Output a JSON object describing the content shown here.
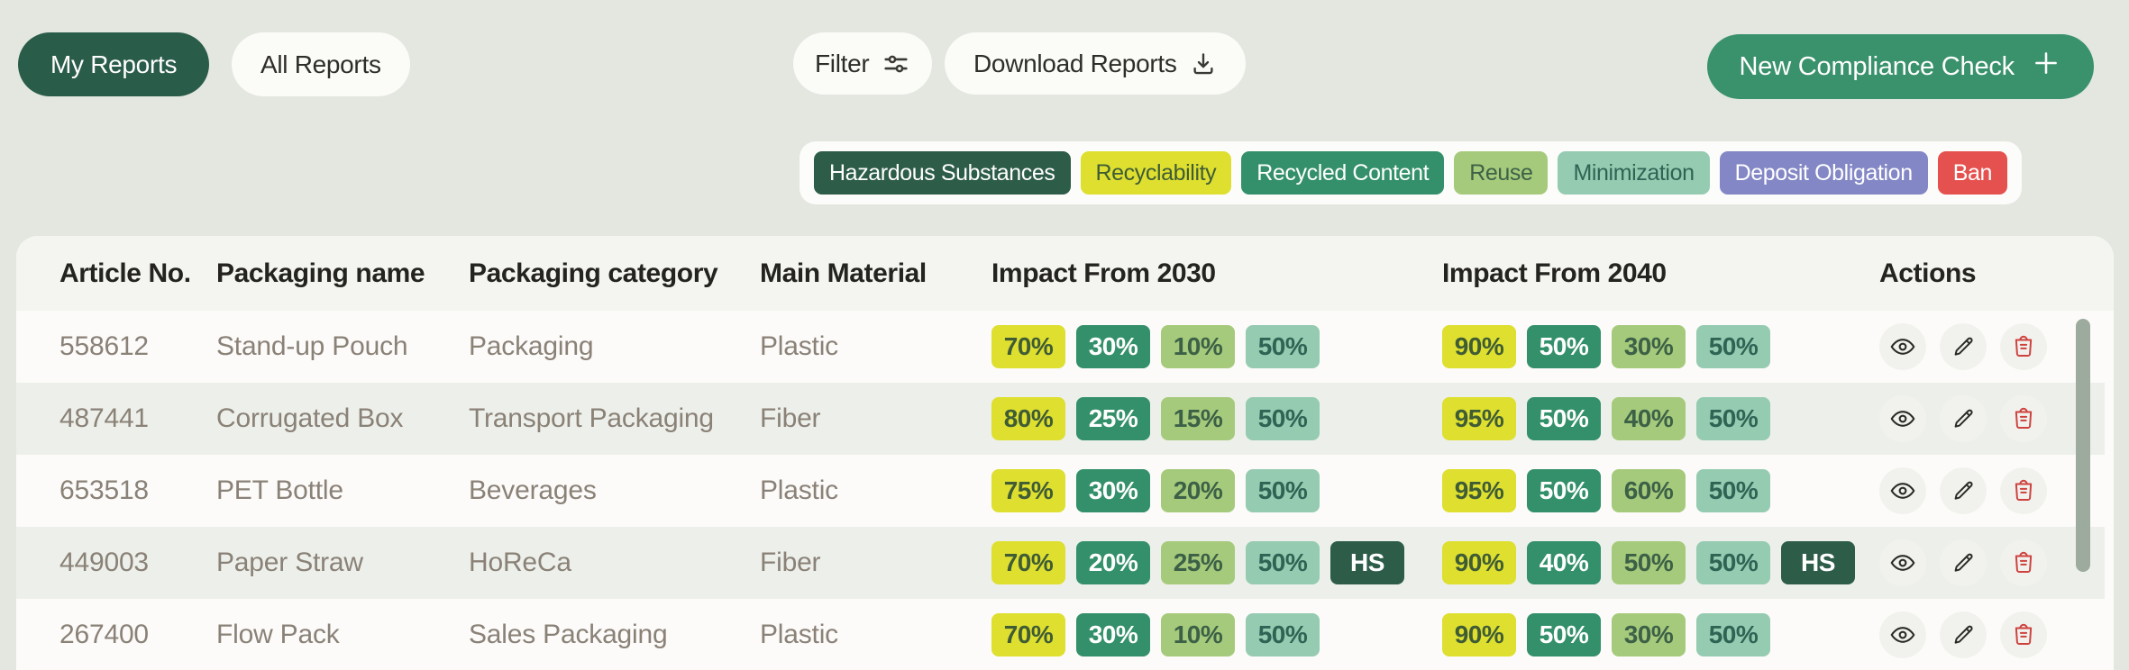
{
  "toolbar": {
    "tabs": [
      {
        "label": "My Reports",
        "active": true
      },
      {
        "label": "All Reports",
        "active": false
      }
    ],
    "filter_label": "Filter",
    "download_label": "Download Reports",
    "new_check_label": "New Compliance Check"
  },
  "legend": {
    "tags": [
      {
        "label": "Hazardous Substances",
        "type": "hazardous"
      },
      {
        "label": "Recyclability",
        "type": "recyclability"
      },
      {
        "label": "Recycled Content",
        "type": "recycled_content"
      },
      {
        "label": "Reuse",
        "type": "reuse"
      },
      {
        "label": "Minimization",
        "type": "minimization"
      },
      {
        "label": "Deposit Obligation",
        "type": "deposit_obligation"
      },
      {
        "label": "Ban",
        "type": "ban"
      }
    ]
  },
  "colors": {
    "page_background": "#e3e7e0",
    "active_tab_green": "#2a5c4a",
    "cta_green": "#3a926c",
    "stripe_row": "#edf0ea",
    "delete_red": "#ce423e",
    "scrollbar": "#9dab9e",
    "badges": {
      "hazardous": {
        "bg": "#2d5c49",
        "fg": "#ffffff"
      },
      "recyclability": {
        "bg": "#dedf2f",
        "fg": "#3f5c35"
      },
      "recycled_content": {
        "bg": "#33906a",
        "fg": "#ffffff"
      },
      "reuse": {
        "bg": "#a6ca7b",
        "fg": "#3c6147"
      },
      "minimization": {
        "bg": "#95cbb1",
        "fg": "#2e6454"
      },
      "deposit_obligation": {
        "bg": "#8387c5",
        "fg": "#ffffff"
      },
      "ban": {
        "bg": "#e5514e",
        "fg": "#ffffff"
      }
    }
  },
  "table": {
    "columns": [
      "Article No.",
      "Packaging name",
      "Packaging category",
      "Main Material",
      "Impact From 2030",
      "Impact From 2040",
      "Actions"
    ],
    "rows": [
      {
        "article_no": "558612",
        "name": "Stand-up Pouch",
        "category": "Packaging",
        "material": "Plastic",
        "impact_2030": [
          {
            "label": "70%",
            "type": "recyclability"
          },
          {
            "label": "30%",
            "type": "recycled_content"
          },
          {
            "label": "10%",
            "type": "reuse"
          },
          {
            "label": "50%",
            "type": "minimization"
          }
        ],
        "impact_2040": [
          {
            "label": "90%",
            "type": "recyclability"
          },
          {
            "label": "50%",
            "type": "recycled_content"
          },
          {
            "label": "30%",
            "type": "reuse"
          },
          {
            "label": "50%",
            "type": "minimization"
          }
        ]
      },
      {
        "article_no": "487441",
        "name": "Corrugated Box",
        "category": "Transport Packaging",
        "material": "Fiber",
        "impact_2030": [
          {
            "label": "80%",
            "type": "recyclability"
          },
          {
            "label": "25%",
            "type": "recycled_content"
          },
          {
            "label": "15%",
            "type": "reuse"
          },
          {
            "label": "50%",
            "type": "minimization"
          }
        ],
        "impact_2040": [
          {
            "label": "95%",
            "type": "recyclability"
          },
          {
            "label": "50%",
            "type": "recycled_content"
          },
          {
            "label": "40%",
            "type": "reuse"
          },
          {
            "label": "50%",
            "type": "minimization"
          }
        ]
      },
      {
        "article_no": "653518",
        "name": "PET Bottle",
        "category": "Beverages",
        "material": "Plastic",
        "impact_2030": [
          {
            "label": "75%",
            "type": "recyclability"
          },
          {
            "label": "30%",
            "type": "recycled_content"
          },
          {
            "label": "20%",
            "type": "reuse"
          },
          {
            "label": "50%",
            "type": "minimization"
          }
        ],
        "impact_2040": [
          {
            "label": "95%",
            "type": "recyclability"
          },
          {
            "label": "50%",
            "type": "recycled_content"
          },
          {
            "label": "60%",
            "type": "reuse"
          },
          {
            "label": "50%",
            "type": "minimization"
          }
        ]
      },
      {
        "article_no": "449003",
        "name": "Paper Straw",
        "category": "HoReCa",
        "material": "Fiber",
        "impact_2030": [
          {
            "label": "70%",
            "type": "recyclability"
          },
          {
            "label": "20%",
            "type": "recycled_content"
          },
          {
            "label": "25%",
            "type": "reuse"
          },
          {
            "label": "50%",
            "type": "minimization"
          },
          {
            "label": "HS",
            "type": "hazardous"
          }
        ],
        "impact_2040": [
          {
            "label": "90%",
            "type": "recyclability"
          },
          {
            "label": "40%",
            "type": "recycled_content"
          },
          {
            "label": "50%",
            "type": "reuse"
          },
          {
            "label": "50%",
            "type": "minimization"
          },
          {
            "label": "HS",
            "type": "hazardous"
          }
        ]
      },
      {
        "article_no": "267400",
        "name": "Flow Pack",
        "category": "Sales Packaging",
        "material": "Plastic",
        "impact_2030": [
          {
            "label": "70%",
            "type": "recyclability"
          },
          {
            "label": "30%",
            "type": "recycled_content"
          },
          {
            "label": "10%",
            "type": "reuse"
          },
          {
            "label": "50%",
            "type": "minimization"
          }
        ],
        "impact_2040": [
          {
            "label": "90%",
            "type": "recyclability"
          },
          {
            "label": "50%",
            "type": "recycled_content"
          },
          {
            "label": "30%",
            "type": "reuse"
          },
          {
            "label": "50%",
            "type": "minimization"
          }
        ]
      }
    ]
  }
}
